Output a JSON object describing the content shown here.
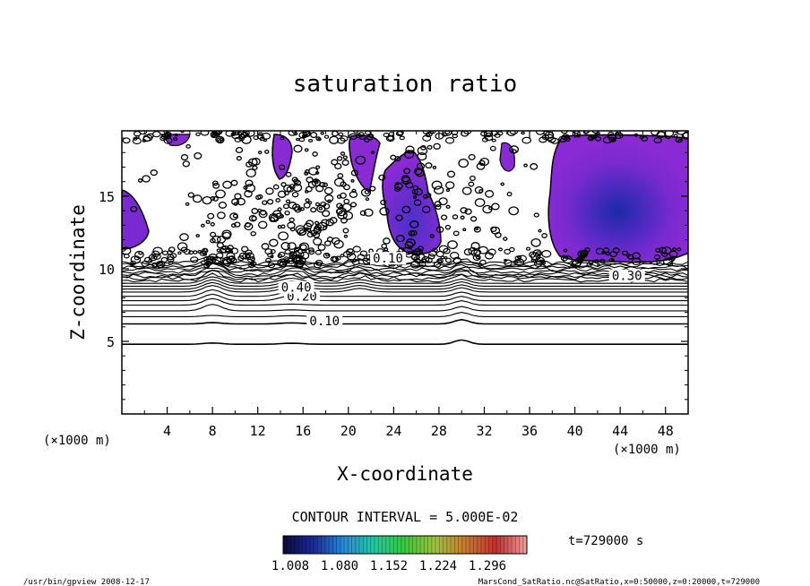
{
  "chart_data": {
    "type": "contour",
    "title": "saturation ratio",
    "xlabel": "X-coordinate",
    "ylabel": "Z-coordinate",
    "x_unit": "(×1000 m)",
    "y_unit": "(×1000 m)",
    "xlim": [
      0,
      50
    ],
    "ylim": [
      0,
      19.5
    ],
    "x_ticks": [
      "4",
      "8",
      "12",
      "16",
      "20",
      "24",
      "28",
      "32",
      "36",
      "40",
      "44",
      "48"
    ],
    "y_ticks": [
      "5",
      "10",
      "15"
    ],
    "contour_interval_text": "CONTOUR INTERVAL = 5.000E-02",
    "contour_labels": [
      {
        "text": "0.10",
        "x": 17.9,
        "y": 6.3
      },
      {
        "text": "0.20",
        "x": 15.9,
        "y": 8.0
      },
      {
        "text": "0.40",
        "x": 15.4,
        "y": 8.6
      },
      {
        "text": "0.30",
        "x": 44.6,
        "y": 9.4
      },
      {
        "text": "0.10",
        "x": 23.5,
        "y": 10.6
      }
    ],
    "time_label": "t=729000 s",
    "colorbar": {
      "labels": [
        "1.008",
        "1.080",
        "1.152",
        "1.224",
        "1.296"
      ],
      "colors": [
        "#0a0a3a",
        "#1a2a9a",
        "#2a8ad8",
        "#22c8a0",
        "#3ac83a",
        "#a0c040",
        "#c87830",
        "#c03030",
        "#f0a0a0"
      ]
    },
    "supersaturated_regions": [
      {
        "name": "right plume",
        "x_range": [
          37,
          50
        ],
        "z_range": [
          10.8,
          19.5
        ],
        "min_center": [
          43.5,
          15
        ],
        "peak": 1.15
      },
      {
        "name": "left edge",
        "x_range": [
          0,
          2.5
        ],
        "z_range": [
          11.5,
          15.5
        ],
        "peak": 1.03
      },
      {
        "name": "central plume",
        "x_range": [
          23.5,
          28.5
        ],
        "z_range": [
          11,
          19.5
        ],
        "peak": 1.06
      },
      {
        "name": "mid column",
        "x_range": [
          20,
          24
        ],
        "z_range": [
          15,
          19.5
        ],
        "peak": 1.02
      },
      {
        "name": "streak",
        "x_range": [
          14,
          16
        ],
        "z_range": [
          15,
          19.5
        ],
        "peak": 1.02
      }
    ]
  },
  "footer": {
    "left": "/usr/bin/gpview   2008-12-17",
    "right": "MarsCond_SatRatio.nc@SatRatio,x=0:50000,z=0:20000,t=729000"
  }
}
